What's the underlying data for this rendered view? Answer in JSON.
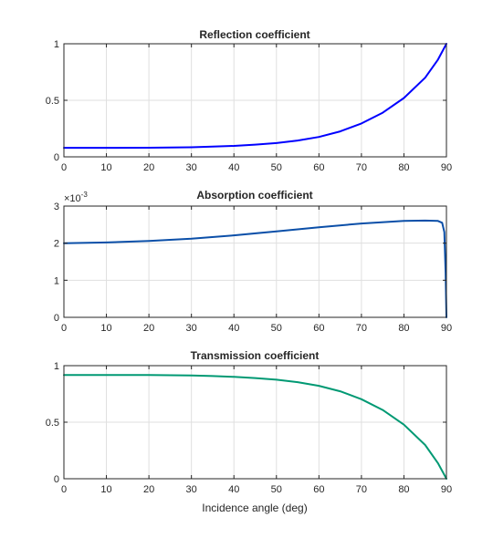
{
  "figure": {
    "background": "#ffffff"
  },
  "chart_data": [
    {
      "type": "line",
      "title": "Reflection coefficient",
      "xlabel": "",
      "ylabel": "",
      "xlim": [
        0,
        90
      ],
      "ylim": [
        0,
        1
      ],
      "xticks": [
        "0",
        "10",
        "20",
        "30",
        "40",
        "50",
        "60",
        "70",
        "80",
        "90"
      ],
      "yticks": [
        "0",
        "0.5",
        "1"
      ],
      "exponent_label": "",
      "grid": true,
      "series": [
        {
          "color": "#0000ff",
          "x": [
            0,
            10,
            20,
            30,
            35,
            40,
            45,
            50,
            55,
            60,
            65,
            70,
            75,
            80,
            85,
            88,
            90
          ],
          "y": [
            0.08,
            0.08,
            0.081,
            0.085,
            0.09,
            0.097,
            0.108,
            0.122,
            0.144,
            0.176,
            0.225,
            0.295,
            0.39,
            0.52,
            0.7,
            0.86,
            1.0
          ]
        }
      ]
    },
    {
      "type": "line",
      "title": "Absorption coefficient",
      "xlabel": "",
      "ylabel": "",
      "xlim": [
        0,
        90
      ],
      "ylim": [
        0,
        3
      ],
      "xticks": [
        "0",
        "10",
        "20",
        "30",
        "40",
        "50",
        "60",
        "70",
        "80",
        "90"
      ],
      "yticks": [
        "0",
        "1",
        "2",
        "3"
      ],
      "exponent_label": "×10",
      "exponent_power": "-3",
      "grid": true,
      "series": [
        {
          "color": "#0b4fa8",
          "x": [
            0,
            10,
            20,
            30,
            40,
            50,
            60,
            70,
            80,
            85,
            88,
            89,
            89.5,
            89.8,
            90
          ],
          "y": [
            2.0,
            2.02,
            2.06,
            2.12,
            2.21,
            2.32,
            2.43,
            2.53,
            2.6,
            2.61,
            2.6,
            2.55,
            2.3,
            1.2,
            0
          ]
        }
      ]
    },
    {
      "type": "line",
      "title": "Transmission coefficient",
      "xlabel": "Incidence angle (deg)",
      "ylabel": "",
      "xlim": [
        0,
        90
      ],
      "ylim": [
        0,
        1
      ],
      "xticks": [
        "0",
        "10",
        "20",
        "30",
        "40",
        "50",
        "60",
        "70",
        "80",
        "90"
      ],
      "yticks": [
        "0",
        "0.5",
        "1"
      ],
      "exponent_label": "",
      "grid": true,
      "series": [
        {
          "color": "#009973",
          "x": [
            0,
            10,
            20,
            30,
            35,
            40,
            45,
            50,
            55,
            60,
            65,
            70,
            75,
            80,
            85,
            88,
            90
          ],
          "y": [
            0.918,
            0.918,
            0.917,
            0.913,
            0.908,
            0.901,
            0.89,
            0.876,
            0.854,
            0.822,
            0.773,
            0.703,
            0.608,
            0.478,
            0.298,
            0.138,
            0.0
          ]
        }
      ]
    }
  ]
}
